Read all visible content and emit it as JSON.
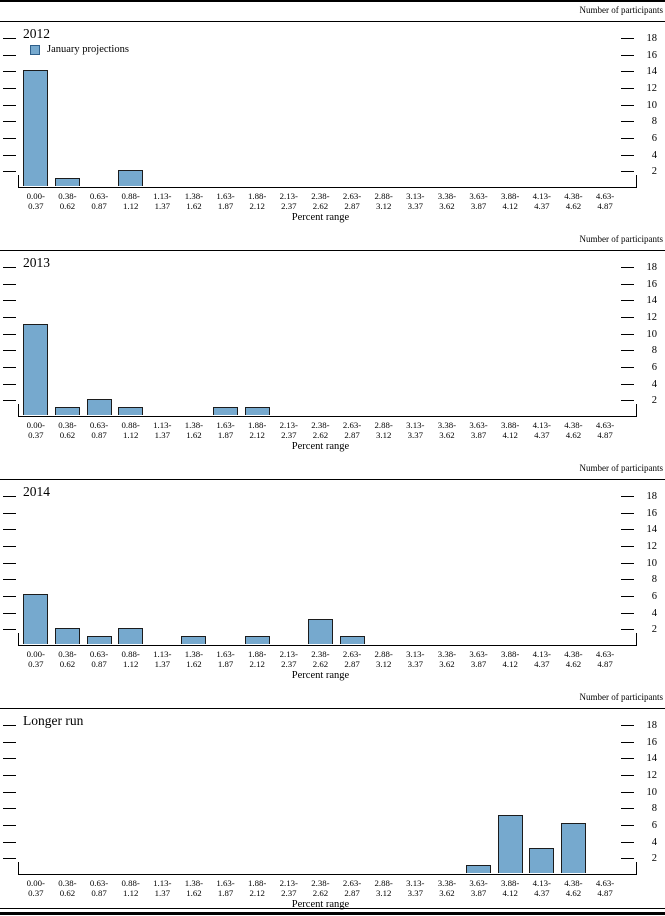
{
  "figure": {
    "right_axis_title": "Number of participants",
    "x_axis_title": "Percent range",
    "legend_label": "January projections",
    "bar_fill": "#76A9CE",
    "bar_border": "#1C1C1C"
  },
  "y_axis": {
    "ticks": [
      2,
      4,
      6,
      8,
      10,
      12,
      14,
      16,
      18
    ],
    "max": 18
  },
  "x_axis": {
    "categories": [
      [
        "0.00-",
        "0.37"
      ],
      [
        "0.38-",
        "0.62"
      ],
      [
        "0.63-",
        "0.87"
      ],
      [
        "0.88-",
        "1.12"
      ],
      [
        "1.13-",
        "1.37"
      ],
      [
        "1.38-",
        "1.62"
      ],
      [
        "1.63-",
        "1.87"
      ],
      [
        "1.88-",
        "2.12"
      ],
      [
        "2.13-",
        "2.37"
      ],
      [
        "2.38-",
        "2.62"
      ],
      [
        "2.63-",
        "2.87"
      ],
      [
        "2.88-",
        "3.12"
      ],
      [
        "3.13-",
        "3.37"
      ],
      [
        "3.38-",
        "3.62"
      ],
      [
        "3.63-",
        "3.87"
      ],
      [
        "3.88-",
        "4.12"
      ],
      [
        "4.13-",
        "4.37"
      ],
      [
        "4.38-",
        "4.62"
      ],
      [
        "4.63-",
        "4.87"
      ]
    ]
  },
  "chart_data": [
    {
      "type": "bar",
      "title": "2012",
      "legend": "January projections",
      "legend_position": "top-left",
      "categories": [
        "0.00-0.37",
        "0.38-0.62",
        "0.63-0.87",
        "0.88-1.12",
        "1.13-1.37",
        "1.38-1.62",
        "1.63-1.87",
        "1.88-2.12",
        "2.13-2.37",
        "2.38-2.62",
        "2.63-2.87",
        "2.88-3.12",
        "3.13-3.37",
        "3.38-3.62",
        "3.63-3.87",
        "3.88-4.12",
        "4.13-4.37",
        "4.38-4.62",
        "4.63-4.87"
      ],
      "values": [
        14,
        1,
        0,
        2,
        0,
        0,
        0,
        0,
        0,
        0,
        0,
        0,
        0,
        0,
        0,
        0,
        0,
        0,
        0
      ],
      "xlabel": "Percent range",
      "ylabel": "Number of participants",
      "ylim": [
        0,
        18
      ],
      "yticks": [
        2,
        4,
        6,
        8,
        10,
        12,
        14,
        16,
        18
      ],
      "grid": false
    },
    {
      "type": "bar",
      "title": "2013",
      "categories": [
        "0.00-0.37",
        "0.38-0.62",
        "0.63-0.87",
        "0.88-1.12",
        "1.13-1.37",
        "1.38-1.62",
        "1.63-1.87",
        "1.88-2.12",
        "2.13-2.37",
        "2.38-2.62",
        "2.63-2.87",
        "2.88-3.12",
        "3.13-3.37",
        "3.38-3.62",
        "3.63-3.87",
        "3.88-4.12",
        "4.13-4.37",
        "4.38-4.62",
        "4.63-4.87"
      ],
      "values": [
        11,
        1,
        2,
        1,
        0,
        0,
        1,
        1,
        0,
        0,
        0,
        0,
        0,
        0,
        0,
        0,
        0,
        0,
        0
      ],
      "xlabel": "Percent range",
      "ylabel": "Number of participants",
      "ylim": [
        0,
        18
      ],
      "yticks": [
        2,
        4,
        6,
        8,
        10,
        12,
        14,
        16,
        18
      ],
      "grid": false
    },
    {
      "type": "bar",
      "title": "2014",
      "categories": [
        "0.00-0.37",
        "0.38-0.62",
        "0.63-0.87",
        "0.88-1.12",
        "1.13-1.37",
        "1.38-1.62",
        "1.63-1.87",
        "1.88-2.12",
        "2.13-2.37",
        "2.38-2.62",
        "2.63-2.87",
        "2.88-3.12",
        "3.13-3.37",
        "3.38-3.62",
        "3.63-3.87",
        "3.88-4.12",
        "4.13-4.37",
        "4.38-4.62",
        "4.63-4.87"
      ],
      "values": [
        6,
        2,
        1,
        2,
        0,
        1,
        0,
        1,
        0,
        3,
        1,
        0,
        0,
        0,
        0,
        0,
        0,
        0,
        0
      ],
      "xlabel": "Percent range",
      "ylabel": "Number of participants",
      "ylim": [
        0,
        18
      ],
      "yticks": [
        2,
        4,
        6,
        8,
        10,
        12,
        14,
        16,
        18
      ],
      "grid": false
    },
    {
      "type": "bar",
      "title": "Longer run",
      "categories": [
        "0.00-0.37",
        "0.38-0.62",
        "0.63-0.87",
        "0.88-1.12",
        "1.13-1.37",
        "1.38-1.62",
        "1.63-1.87",
        "1.88-2.12",
        "2.13-2.37",
        "2.38-2.62",
        "2.63-2.87",
        "2.88-3.12",
        "3.13-3.37",
        "3.38-3.62",
        "3.63-3.87",
        "3.88-4.12",
        "4.13-4.37",
        "4.38-4.62",
        "4.63-4.87"
      ],
      "values": [
        0,
        0,
        0,
        0,
        0,
        0,
        0,
        0,
        0,
        0,
        0,
        0,
        0,
        0,
        1,
        7,
        3,
        6,
        0
      ],
      "xlabel": "Percent range",
      "ylabel": "Number of participants",
      "ylim": [
        0,
        18
      ],
      "yticks": [
        2,
        4,
        6,
        8,
        10,
        12,
        14,
        16,
        18
      ],
      "grid": false
    }
  ]
}
